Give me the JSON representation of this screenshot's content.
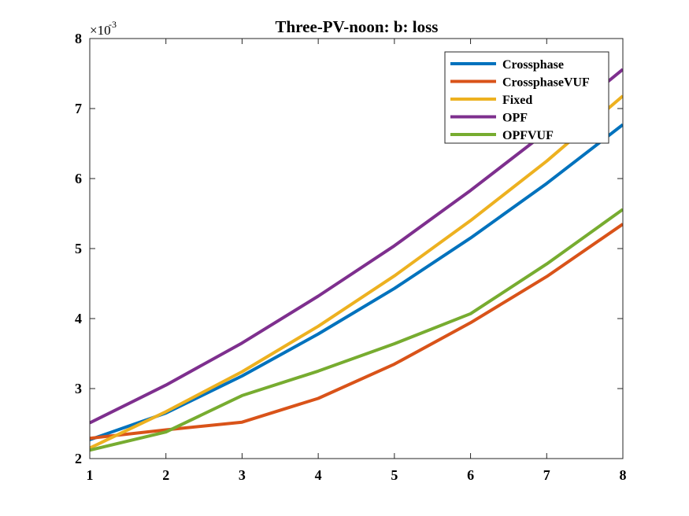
{
  "chart_data": {
    "type": "line",
    "title": "Three-PV-noon: b: loss",
    "exponent_label": "×10",
    "exponent_power": "-3",
    "xlabel": "",
    "ylabel": "",
    "xlim": [
      1,
      8
    ],
    "ylim": [
      2,
      8
    ],
    "xticks": [
      "1",
      "2",
      "3",
      "4",
      "5",
      "6",
      "7",
      "8"
    ],
    "yticks": [
      "2",
      "3",
      "4",
      "5",
      "6",
      "7",
      "8"
    ],
    "grid": false,
    "legend_position": "top-right",
    "x": [
      1,
      2,
      3,
      4,
      5,
      6,
      7,
      8
    ],
    "series": [
      {
        "name": "Crossphase",
        "color": "#0072BD",
        "values": [
          2.27,
          2.65,
          3.18,
          3.78,
          4.43,
          5.15,
          5.93,
          6.77
        ]
      },
      {
        "name": "CrossphaseVUF",
        "color": "#D95319",
        "values": [
          2.29,
          2.41,
          2.52,
          2.86,
          3.35,
          3.94,
          4.6,
          5.35
        ]
      },
      {
        "name": "Fixed",
        "color": "#EDB120",
        "values": [
          2.15,
          2.67,
          3.24,
          3.89,
          4.61,
          5.4,
          6.25,
          7.18
        ]
      },
      {
        "name": "OPF",
        "color": "#7E2F8E",
        "values": [
          2.51,
          3.05,
          3.65,
          4.32,
          5.04,
          5.83,
          6.67,
          7.56
        ]
      },
      {
        "name": "OPFVUF",
        "color": "#77AC30",
        "values": [
          2.12,
          2.38,
          2.9,
          3.25,
          3.64,
          4.07,
          4.78,
          5.56
        ]
      }
    ]
  }
}
